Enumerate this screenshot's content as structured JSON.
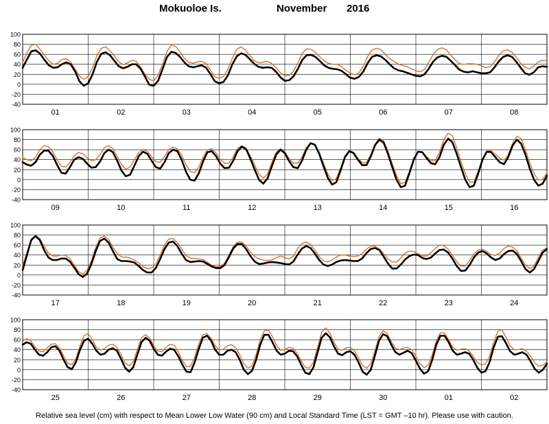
{
  "title": {
    "station": "Mokuoloe Is.",
    "month": "November",
    "year": "2016"
  },
  "caption": "Relative sea level (cm) with respect to Mean Lower Low Water (90 cm) and Local Standard Time (LST = GMT –10 hr). Please use with caution.",
  "colors": {
    "observed": "#000000",
    "predicted": "#d2691e",
    "frame": "#000000"
  },
  "chart_data": [
    {
      "type": "line",
      "ylim": [
        -40,
        100
      ],
      "yticks": [
        -40,
        -20,
        0,
        20,
        40,
        60,
        80,
        100
      ],
      "days": [
        "01",
        "02",
        "03",
        "04",
        "05",
        "06",
        "07",
        "08"
      ],
      "series": [
        {
          "key": "observed",
          "values": [
            33,
            50,
            66,
            68,
            61,
            49,
            38,
            33,
            34,
            40,
            44,
            40,
            26,
            6,
            -3,
            2,
            20,
            45,
            61,
            64,
            58,
            47,
            36,
            32,
            35,
            40,
            40,
            31,
            15,
            -1,
            -3,
            7,
            30,
            54,
            65,
            63,
            55,
            44,
            36,
            34,
            36,
            38,
            33,
            20,
            6,
            2,
            5,
            18,
            40,
            56,
            62,
            59,
            50,
            41,
            35,
            33,
            34,
            33,
            25,
            14,
            7,
            8,
            16,
            31,
            49,
            58,
            59,
            55,
            47,
            38,
            33,
            31,
            30,
            27,
            20,
            13,
            11,
            15,
            26,
            43,
            55,
            58,
            56,
            49,
            40,
            32,
            28,
            26,
            23,
            20,
            17,
            16,
            20,
            32,
            46,
            54,
            57,
            55,
            47,
            38,
            29,
            25,
            24,
            26,
            24,
            22,
            22,
            24,
            34,
            46,
            55,
            58,
            55,
            45,
            33,
            22,
            19,
            24,
            34,
            36,
            35
          ]
        },
        {
          "key": "predicted",
          "values": [
            44,
            63,
            78,
            80,
            70,
            58,
            47,
            40,
            42,
            50,
            51,
            45,
            30,
            17,
            10,
            16,
            33,
            58,
            72,
            75,
            67,
            57,
            45,
            39,
            43,
            48,
            46,
            35,
            20,
            10,
            7,
            18,
            40,
            65,
            78,
            76,
            65,
            52,
            44,
            42,
            45,
            46,
            41,
            28,
            15,
            12,
            16,
            30,
            52,
            70,
            75,
            68,
            57,
            47,
            43,
            44,
            46,
            42,
            33,
            23,
            17,
            18,
            26,
            43,
            62,
            71,
            70,
            64,
            55,
            47,
            42,
            40,
            40,
            35,
            28,
            22,
            19,
            23,
            37,
            56,
            69,
            72,
            69,
            60,
            51,
            46,
            40,
            38,
            35,
            31,
            27,
            25,
            30,
            45,
            60,
            70,
            73,
            69,
            58,
            49,
            41,
            40,
            41,
            41,
            40,
            37,
            33,
            35,
            45,
            58,
            67,
            69,
            64,
            54,
            42,
            34,
            31,
            36,
            45,
            48,
            47
          ]
        }
      ]
    },
    {
      "type": "line",
      "ylim": [
        -40,
        100
      ],
      "yticks": [
        -40,
        -20,
        0,
        20,
        40,
        60,
        80,
        100
      ],
      "days": [
        "09",
        "10",
        "11",
        "12",
        "13",
        "14",
        "15",
        "16"
      ],
      "series": [
        {
          "key": "observed",
          "values": [
            35,
            30,
            28,
            35,
            50,
            58,
            58,
            48,
            30,
            14,
            12,
            25,
            40,
            45,
            42,
            32,
            24,
            25,
            36,
            53,
            60,
            55,
            38,
            18,
            7,
            10,
            28,
            47,
            56,
            52,
            38,
            25,
            22,
            35,
            53,
            60,
            57,
            40,
            16,
            0,
            -2,
            13,
            37,
            55,
            57,
            47,
            32,
            23,
            24,
            38,
            57,
            66,
            61,
            42,
            20,
            0,
            -8,
            3,
            27,
            50,
            60,
            53,
            37,
            25,
            23,
            38,
            60,
            73,
            70,
            52,
            27,
            4,
            -10,
            -5,
            19,
            45,
            57,
            53,
            40,
            29,
            29,
            46,
            69,
            80,
            74,
            52,
            25,
            0,
            -15,
            -12,
            13,
            40,
            56,
            55,
            43,
            33,
            31,
            45,
            70,
            82,
            75,
            52,
            25,
            0,
            -15,
            -12,
            12,
            40,
            56,
            55,
            45,
            35,
            31,
            45,
            68,
            80,
            72,
            50,
            22,
            0,
            -12,
            -8,
            8
          ]
        },
        {
          "key": "predicted",
          "values": [
            44,
            40,
            38,
            45,
            60,
            68,
            66,
            56,
            40,
            27,
            25,
            35,
            48,
            54,
            52,
            44,
            38,
            40,
            50,
            64,
            68,
            62,
            47,
            30,
            21,
            25,
            40,
            54,
            60,
            57,
            46,
            36,
            35,
            46,
            60,
            65,
            62,
            49,
            30,
            16,
            14,
            25,
            45,
            60,
            62,
            53,
            40,
            33,
            33,
            46,
            63,
            68,
            63,
            47,
            29,
            11,
            3,
            12,
            35,
            55,
            62,
            56,
            42,
            33,
            33,
            45,
            64,
            74,
            70,
            55,
            33,
            12,
            -2,
            2,
            24,
            48,
            58,
            55,
            43,
            34,
            34,
            50,
            71,
            83,
            78,
            57,
            32,
            8,
            -8,
            -5,
            17,
            43,
            56,
            55,
            46,
            38,
            38,
            55,
            80,
            93,
            88,
            64,
            36,
            12,
            -5,
            -5,
            17,
            41,
            57,
            58,
            51,
            43,
            39,
            50,
            73,
            87,
            82,
            60,
            33,
            12,
            -1,
            1,
            14
          ]
        }
      ]
    },
    {
      "type": "line",
      "ylim": [
        -40,
        100
      ],
      "yticks": [
        -40,
        -20,
        0,
        20,
        40,
        60,
        80,
        100
      ],
      "days": [
        "17",
        "18",
        "19",
        "20",
        "21",
        "22",
        "23",
        "24"
      ],
      "series": [
        {
          "key": "observed",
          "values": [
            10,
            40,
            70,
            78,
            70,
            50,
            35,
            30,
            30,
            33,
            33,
            27,
            15,
            2,
            -4,
            3,
            22,
            48,
            68,
            73,
            65,
            48,
            32,
            28,
            28,
            27,
            25,
            18,
            10,
            5,
            5,
            14,
            32,
            52,
            65,
            67,
            58,
            43,
            30,
            26,
            27,
            28,
            27,
            22,
            17,
            14,
            14,
            20,
            36,
            53,
            62,
            62,
            52,
            38,
            27,
            22,
            23,
            25,
            26,
            25,
            24,
            22,
            21,
            27,
            41,
            53,
            58,
            54,
            43,
            30,
            21,
            18,
            21,
            26,
            29,
            30,
            29,
            28,
            28,
            33,
            44,
            52,
            54,
            50,
            37,
            23,
            13,
            13,
            21,
            31,
            38,
            41,
            40,
            34,
            32,
            35,
            43,
            50,
            51,
            45,
            33,
            18,
            8,
            9,
            20,
            35,
            45,
            48,
            43,
            35,
            30,
            33,
            42,
            48,
            49,
            42,
            28,
            12,
            5,
            12,
            28,
            45,
            52
          ]
        },
        {
          "key": "predicted",
          "values": [
            18,
            46,
            72,
            79,
            73,
            58,
            44,
            38,
            38,
            40,
            39,
            33,
            20,
            7,
            2,
            10,
            29,
            55,
            74,
            78,
            71,
            56,
            43,
            36,
            36,
            34,
            30,
            24,
            17,
            13,
            14,
            22,
            40,
            60,
            72,
            73,
            65,
            52,
            39,
            34,
            33,
            32,
            31,
            25,
            20,
            16,
            17,
            24,
            40,
            57,
            66,
            66,
            58,
            46,
            37,
            32,
            30,
            29,
            30,
            35,
            38,
            35,
            32,
            38,
            53,
            63,
            66,
            61,
            50,
            37,
            28,
            26,
            30,
            36,
            40,
            40,
            38,
            37,
            38,
            43,
            52,
            57,
            58,
            52,
            43,
            32,
            26,
            26,
            34,
            44,
            48,
            47,
            43,
            38,
            38,
            45,
            53,
            60,
            59,
            52,
            40,
            27,
            18,
            18,
            29,
            42,
            50,
            52,
            47,
            41,
            39,
            44,
            53,
            58,
            56,
            48,
            34,
            20,
            13,
            18,
            35,
            50,
            54
          ]
        }
      ]
    },
    {
      "type": "line",
      "ylim": [
        -40,
        100
      ],
      "yticks": [
        -40,
        -20,
        0,
        20,
        40,
        60,
        80,
        100
      ],
      "days": [
        "25",
        "26",
        "27",
        "28",
        "29",
        "30",
        "01",
        "02"
      ],
      "series": [
        {
          "key": "observed",
          "values": [
            50,
            55,
            52,
            40,
            30,
            28,
            35,
            45,
            47,
            38,
            20,
            5,
            1,
            15,
            40,
            58,
            62,
            52,
            38,
            30,
            32,
            40,
            43,
            38,
            22,
            4,
            -4,
            5,
            30,
            55,
            64,
            58,
            42,
            30,
            28,
            36,
            42,
            40,
            27,
            10,
            -4,
            -5,
            15,
            42,
            64,
            68,
            58,
            40,
            30,
            30,
            38,
            40,
            35,
            20,
            0,
            -9,
            -2,
            20,
            50,
            70,
            70,
            55,
            38,
            30,
            32,
            38,
            37,
            27,
            10,
            -6,
            -9,
            5,
            35,
            64,
            73,
            65,
            47,
            32,
            29,
            35,
            37,
            30,
            15,
            -4,
            -10,
            0,
            28,
            58,
            71,
            67,
            50,
            35,
            30,
            34,
            38,
            33,
            18,
            2,
            -8,
            -3,
            20,
            50,
            68,
            68,
            55,
            38,
            30,
            32,
            35,
            32,
            20,
            4,
            -6,
            -3,
            15,
            45,
            66,
            67,
            53,
            37,
            30,
            32,
            35,
            30,
            17,
            2,
            -6,
            0,
            12
          ]
        },
        {
          "key": "predicted",
          "values": [
            58,
            62,
            58,
            46,
            37,
            36,
            44,
            51,
            52,
            43,
            28,
            13,
            10,
            22,
            48,
            68,
            72,
            60,
            45,
            39,
            42,
            49,
            51,
            45,
            30,
            14,
            8,
            16,
            40,
            64,
            70,
            63,
            48,
            37,
            36,
            45,
            51,
            49,
            36,
            18,
            6,
            7,
            25,
            52,
            70,
            72,
            63,
            48,
            39,
            41,
            48,
            50,
            44,
            30,
            12,
            3,
            8,
            30,
            60,
            78,
            79,
            66,
            48,
            39,
            40,
            45,
            43,
            33,
            18,
            5,
            3,
            15,
            45,
            75,
            84,
            73,
            55,
            41,
            39,
            44,
            45,
            38,
            24,
            8,
            3,
            12,
            38,
            66,
            78,
            72,
            56,
            43,
            40,
            43,
            45,
            40,
            27,
            12,
            4,
            9,
            30,
            58,
            74,
            73,
            60,
            45,
            39,
            41,
            42,
            37,
            27,
            15,
            9,
            12,
            27,
            55,
            77,
            80,
            65,
            48,
            40,
            40,
            42,
            37,
            27,
            14,
            7,
            9,
            16
          ]
        }
      ]
    }
  ]
}
